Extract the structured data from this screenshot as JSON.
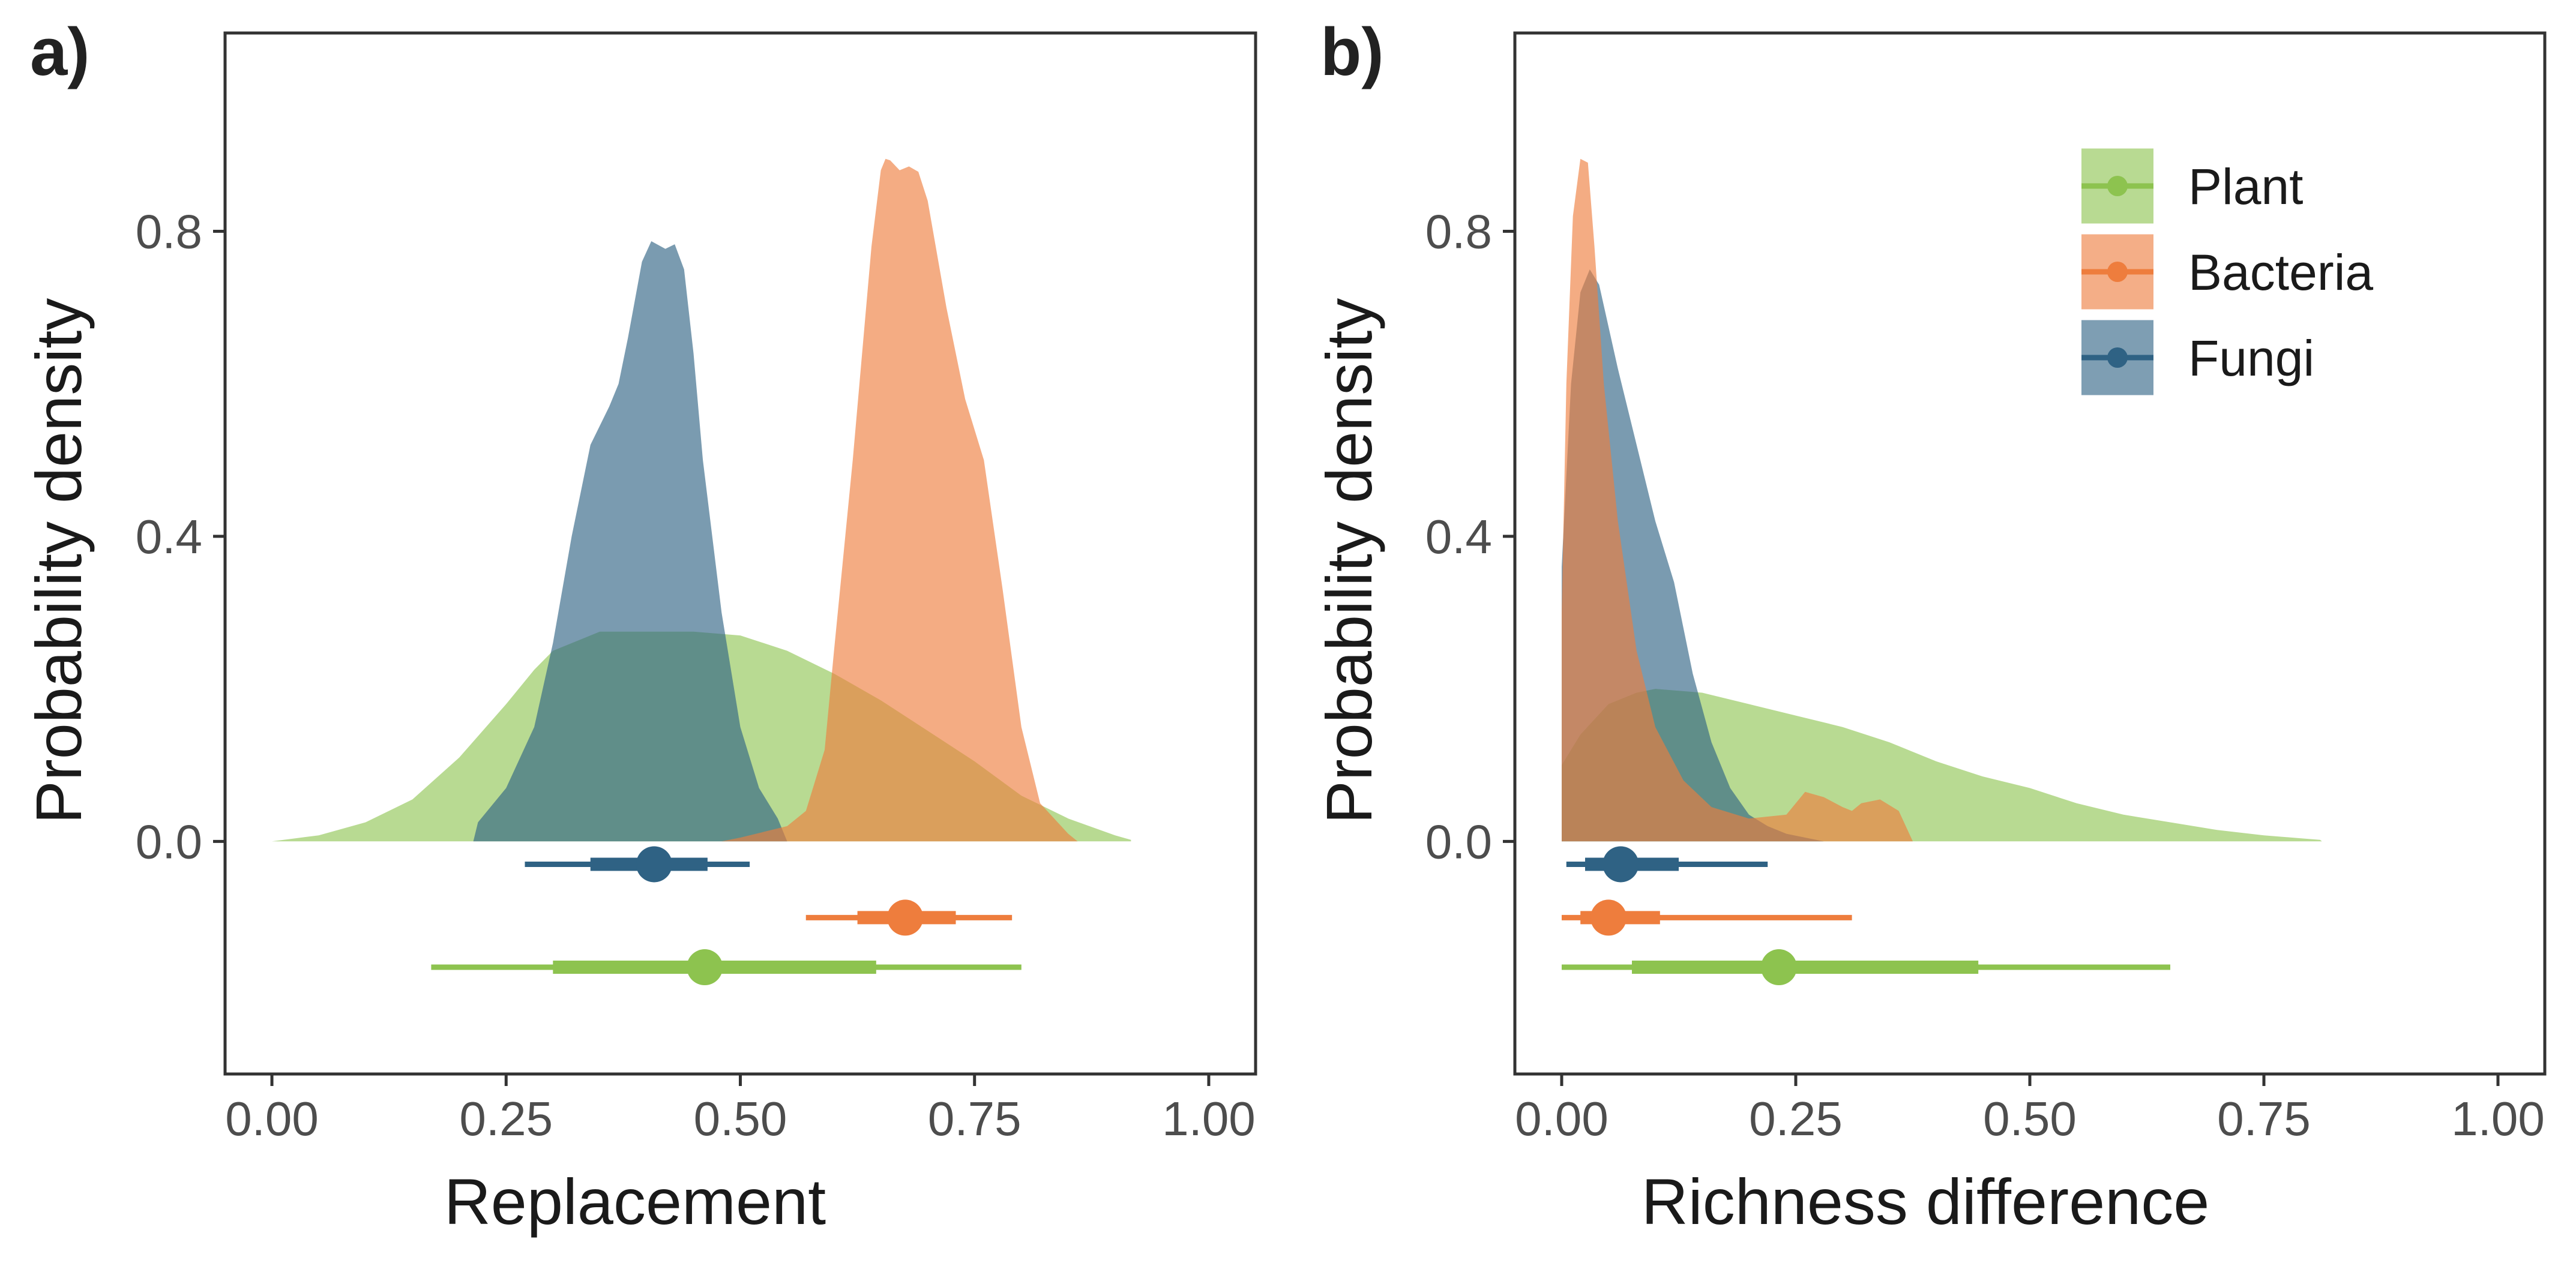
{
  "colors": {
    "Plant": "#8dc34f",
    "Bacteria": "#ee7d3d",
    "Fungi": "#2f6284",
    "frame": "#333333",
    "tick_label": "#4d4d4d"
  },
  "legend": {
    "placement": "top-right of panel b",
    "items": [
      {
        "label": "Plant",
        "color_key": "Plant"
      },
      {
        "label": "Bacteria",
        "color_key": "Bacteria"
      },
      {
        "label": "Fungi",
        "color_key": "Fungi"
      }
    ]
  },
  "chart_data": [
    {
      "tag": "a)",
      "type": "area",
      "subtype": "posterior density with point-interval summaries",
      "xlabel": "Replacement",
      "ylabel": "Probability density",
      "xlim": [
        -0.05,
        1.05
      ],
      "ylim": [
        -0.305,
        1.06
      ],
      "x_ticks": [
        "0.00",
        "0.25",
        "0.50",
        "0.75",
        "1.00"
      ],
      "y_ticks": [
        "0.0",
        "0.4",
        "0.8"
      ],
      "grid": false,
      "series": [
        {
          "name": "Plant",
          "density": [
            [
              0.0,
              0.0
            ],
            [
              0.05,
              0.008
            ],
            [
              0.1,
              0.025
            ],
            [
              0.15,
              0.055
            ],
            [
              0.2,
              0.11
            ],
            [
              0.25,
              0.18
            ],
            [
              0.28,
              0.225
            ],
            [
              0.3,
              0.25
            ],
            [
              0.35,
              0.275
            ],
            [
              0.4,
              0.275
            ],
            [
              0.45,
              0.275
            ],
            [
              0.5,
              0.27
            ],
            [
              0.55,
              0.25
            ],
            [
              0.6,
              0.22
            ],
            [
              0.65,
              0.185
            ],
            [
              0.7,
              0.145
            ],
            [
              0.75,
              0.105
            ],
            [
              0.8,
              0.06
            ],
            [
              0.85,
              0.03
            ],
            [
              0.9,
              0.008
            ],
            [
              0.917,
              0.002
            ]
          ],
          "interval": {
            "point": 0.462,
            "inner": [
              0.3,
              0.645
            ],
            "outer": [
              0.17,
              0.8
            ]
          },
          "interval_y": -0.165
        },
        {
          "name": "Bacteria",
          "density": [
            [
              0.48,
              0.0
            ],
            [
              0.5,
              0.005
            ],
            [
              0.55,
              0.02
            ],
            [
              0.57,
              0.04
            ],
            [
              0.59,
              0.12
            ],
            [
              0.6,
              0.25
            ],
            [
              0.62,
              0.5
            ],
            [
              0.64,
              0.78
            ],
            [
              0.65,
              0.88
            ],
            [
              0.655,
              0.895
            ],
            [
              0.66,
              0.893
            ],
            [
              0.67,
              0.88
            ],
            [
              0.68,
              0.885
            ],
            [
              0.69,
              0.878
            ],
            [
              0.7,
              0.84
            ],
            [
              0.72,
              0.7
            ],
            [
              0.74,
              0.58
            ],
            [
              0.76,
              0.5
            ],
            [
              0.78,
              0.33
            ],
            [
              0.8,
              0.15
            ],
            [
              0.82,
              0.05
            ],
            [
              0.85,
              0.01
            ],
            [
              0.86,
              0.0
            ]
          ],
          "interval": {
            "point": 0.676,
            "inner": [
              0.625,
              0.73
            ],
            "outer": [
              0.57,
              0.79
            ]
          },
          "interval_y": -0.1
        },
        {
          "name": "Fungi",
          "density": [
            [
              0.215,
              0.0
            ],
            [
              0.22,
              0.025
            ],
            [
              0.25,
              0.07
            ],
            [
              0.28,
              0.15
            ],
            [
              0.3,
              0.26
            ],
            [
              0.32,
              0.4
            ],
            [
              0.34,
              0.52
            ],
            [
              0.36,
              0.57
            ],
            [
              0.37,
              0.6
            ],
            [
              0.38,
              0.66
            ],
            [
              0.395,
              0.76
            ],
            [
              0.405,
              0.787
            ],
            [
              0.42,
              0.777
            ],
            [
              0.43,
              0.783
            ],
            [
              0.44,
              0.75
            ],
            [
              0.45,
              0.64
            ],
            [
              0.46,
              0.5
            ],
            [
              0.48,
              0.3
            ],
            [
              0.5,
              0.15
            ],
            [
              0.52,
              0.07
            ],
            [
              0.54,
              0.03
            ],
            [
              0.55,
              0.0
            ]
          ],
          "interval": {
            "point": 0.408,
            "inner": [
              0.34,
              0.465
            ],
            "outer": [
              0.27,
              0.51
            ]
          },
          "interval_y": -0.03
        }
      ]
    },
    {
      "tag": "b)",
      "type": "area",
      "subtype": "posterior density with point-interval summaries",
      "xlabel": "Richness difference",
      "ylabel": "Probability density",
      "xlim": [
        -0.05,
        1.05
      ],
      "ylim": [
        -0.305,
        1.06
      ],
      "x_ticks": [
        "0.00",
        "0.25",
        "0.50",
        "0.75",
        "1.00"
      ],
      "y_ticks": [
        "0.0",
        "0.4",
        "0.8"
      ],
      "grid": false,
      "series": [
        {
          "name": "Plant",
          "density": [
            [
              0.0,
              0.0
            ],
            [
              0.0,
              0.1
            ],
            [
              0.02,
              0.14
            ],
            [
              0.05,
              0.18
            ],
            [
              0.08,
              0.195
            ],
            [
              0.1,
              0.2
            ],
            [
              0.15,
              0.195
            ],
            [
              0.2,
              0.18
            ],
            [
              0.25,
              0.165
            ],
            [
              0.3,
              0.15
            ],
            [
              0.35,
              0.13
            ],
            [
              0.4,
              0.105
            ],
            [
              0.45,
              0.085
            ],
            [
              0.5,
              0.07
            ],
            [
              0.55,
              0.05
            ],
            [
              0.6,
              0.035
            ],
            [
              0.65,
              0.025
            ],
            [
              0.7,
              0.015
            ],
            [
              0.75,
              0.008
            ],
            [
              0.81,
              0.002
            ],
            [
              0.812,
              0.0
            ]
          ],
          "interval": {
            "point": 0.232,
            "inner": [
              0.075,
              0.445
            ],
            "outer": [
              0.0,
              0.65
            ]
          },
          "interval_y": -0.165
        },
        {
          "name": "Bacteria",
          "density": [
            [
              0.0,
              0.0
            ],
            [
              0.0,
              0.3
            ],
            [
              0.005,
              0.6
            ],
            [
              0.012,
              0.82
            ],
            [
              0.02,
              0.895
            ],
            [
              0.028,
              0.89
            ],
            [
              0.035,
              0.78
            ],
            [
              0.045,
              0.6
            ],
            [
              0.06,
              0.42
            ],
            [
              0.08,
              0.25
            ],
            [
              0.1,
              0.15
            ],
            [
              0.13,
              0.08
            ],
            [
              0.16,
              0.045
            ],
            [
              0.2,
              0.03
            ],
            [
              0.24,
              0.035
            ],
            [
              0.26,
              0.065
            ],
            [
              0.28,
              0.058
            ],
            [
              0.3,
              0.045
            ],
            [
              0.31,
              0.04
            ],
            [
              0.32,
              0.05
            ],
            [
              0.34,
              0.055
            ],
            [
              0.36,
              0.04
            ],
            [
              0.375,
              0.0
            ]
          ],
          "interval": {
            "point": 0.05,
            "inner": [
              0.02,
              0.105
            ],
            "outer": [
              0.0,
              0.31
            ]
          },
          "interval_y": -0.1
        },
        {
          "name": "Fungi",
          "density": [
            [
              0.0,
              0.0
            ],
            [
              0.0,
              0.36
            ],
            [
              0.01,
              0.6
            ],
            [
              0.02,
              0.72
            ],
            [
              0.03,
              0.75
            ],
            [
              0.04,
              0.73
            ],
            [
              0.06,
              0.62
            ],
            [
              0.08,
              0.52
            ],
            [
              0.1,
              0.42
            ],
            [
              0.12,
              0.34
            ],
            [
              0.14,
              0.22
            ],
            [
              0.16,
              0.13
            ],
            [
              0.18,
              0.07
            ],
            [
              0.2,
              0.035
            ],
            [
              0.22,
              0.02
            ],
            [
              0.24,
              0.01
            ],
            [
              0.26,
              0.005
            ],
            [
              0.28,
              0.0
            ]
          ],
          "interval": {
            "point": 0.063,
            "inner": [
              0.025,
              0.125
            ],
            "outer": [
              0.005,
              0.22
            ]
          },
          "interval_y": -0.03
        }
      ]
    }
  ]
}
